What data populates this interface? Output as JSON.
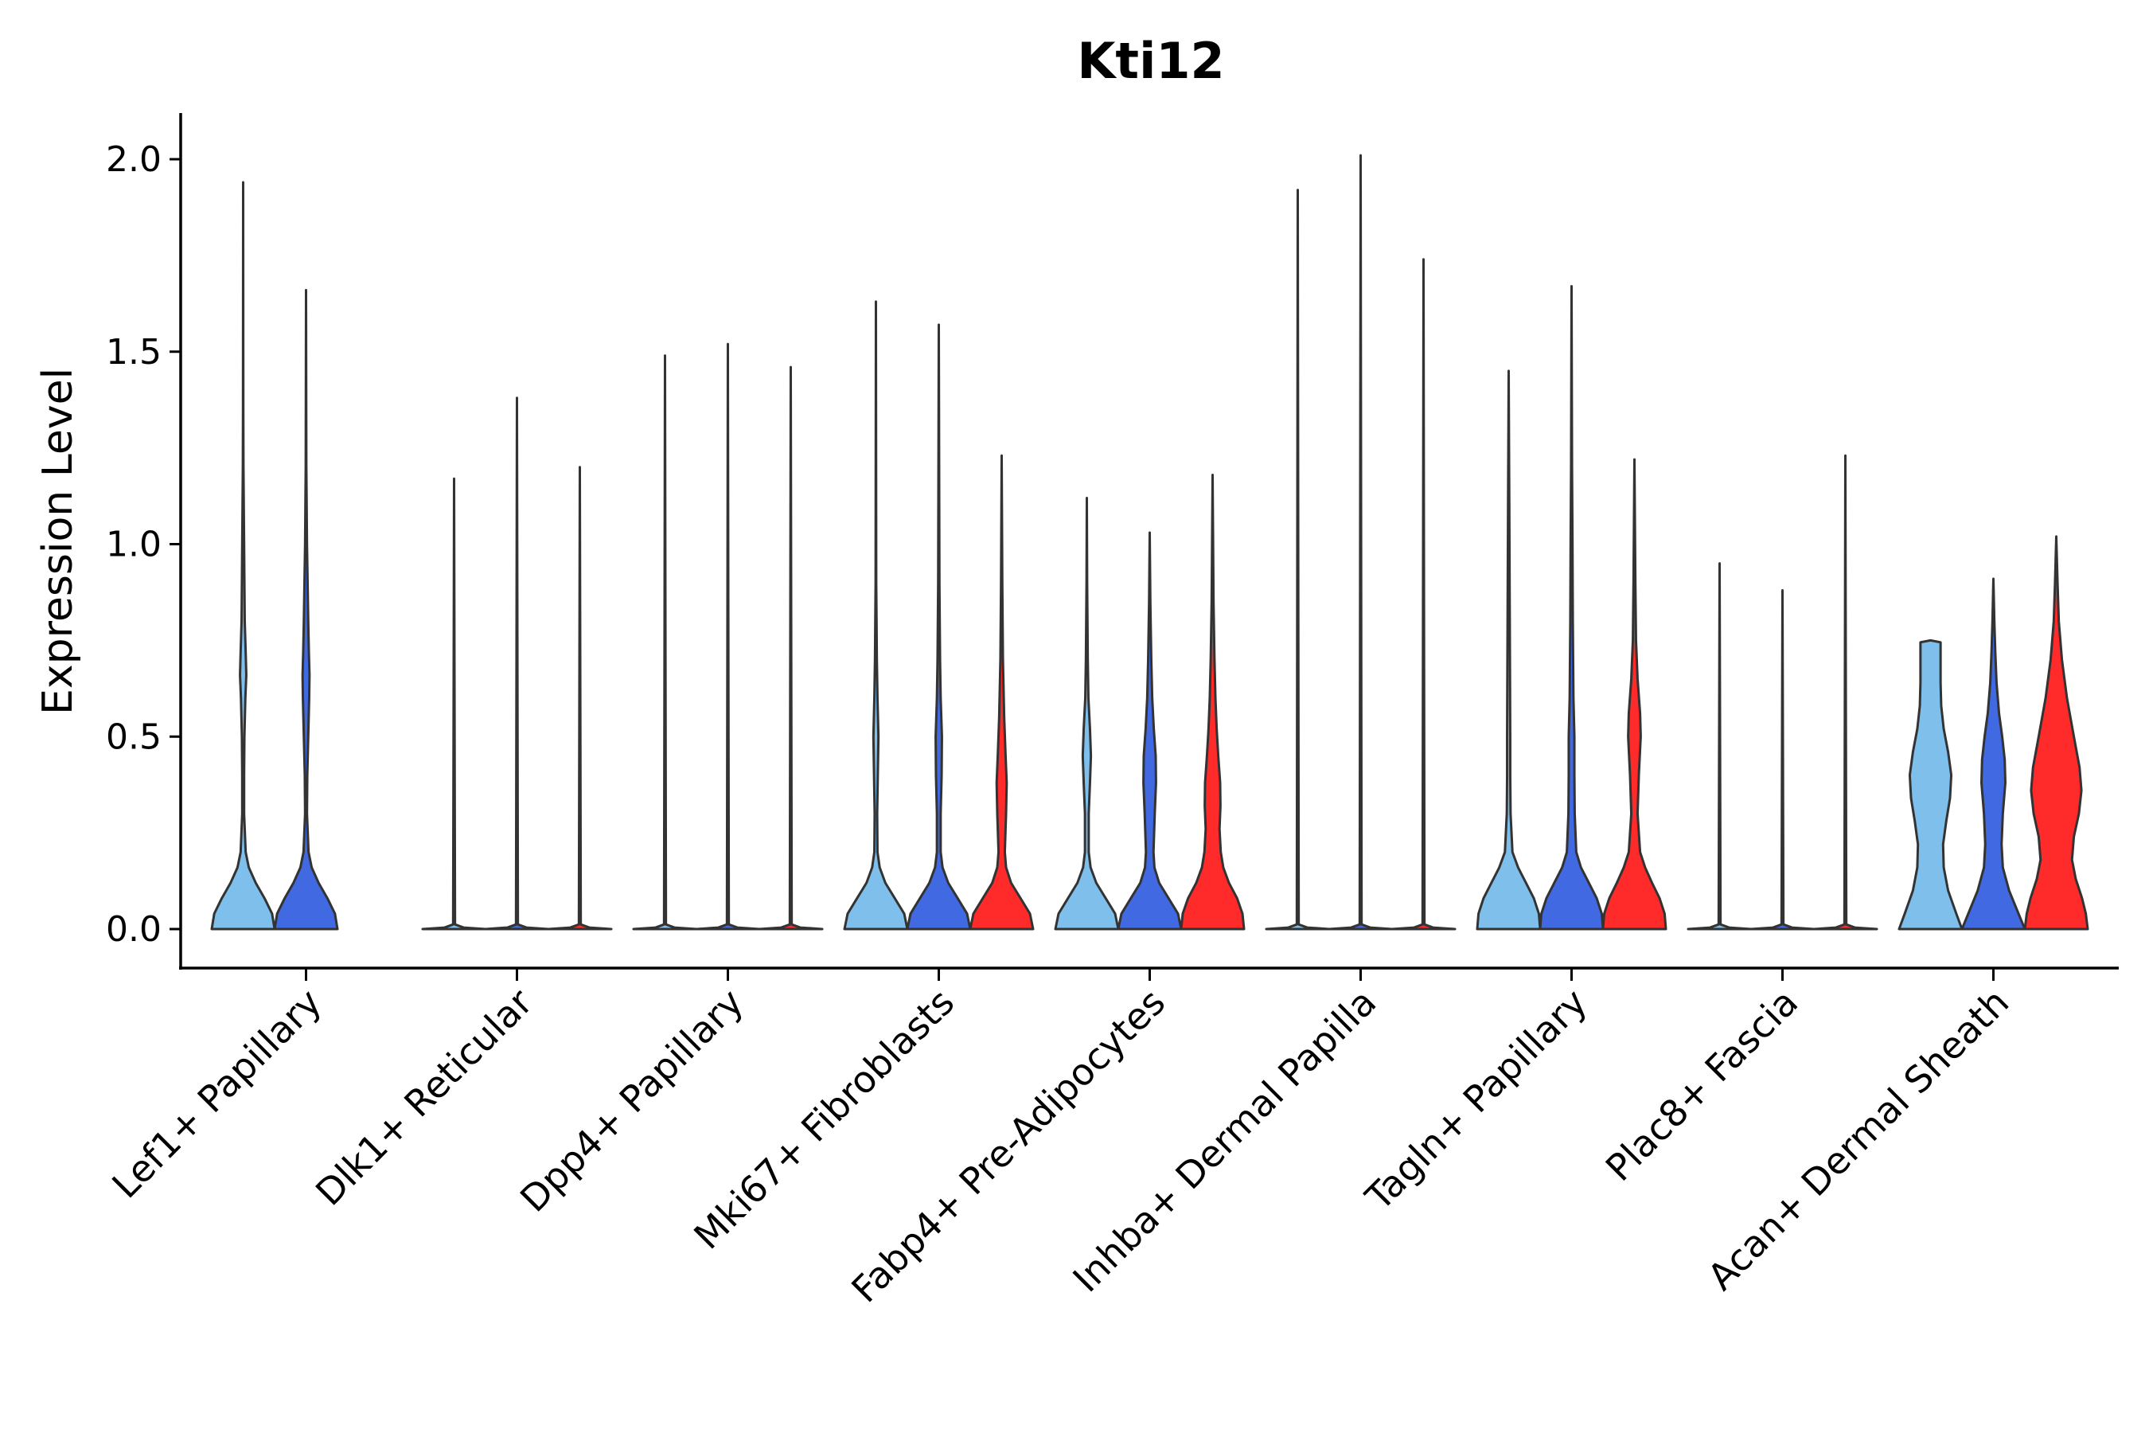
{
  "chart_data": {
    "type": "violin",
    "title": "Kti12",
    "xlabel": "",
    "ylabel": "Expression Level",
    "ylim": [
      -0.1,
      2.12
    ],
    "yticks": [
      0.0,
      0.5,
      1.0,
      1.5,
      2.0
    ],
    "ytick_labels": [
      "0.0",
      "0.5",
      "1.0",
      "1.5",
      "2.0"
    ],
    "grid": false,
    "legend": "none",
    "categories": [
      "Lef1+ Papillary",
      "Dlk1+ Reticular",
      "Dpp4+ Papillary",
      "Mki67+ Fibroblasts",
      "Fabp4+ Pre-Adipocytes",
      "Inhba+ Dermal Papilla",
      "Tagln+ Papillary",
      "Plac8+ Fascia",
      "Acan+ Dermal Sheath"
    ],
    "series_colors": [
      "#7fbfec",
      "#4169e1",
      "#ff2a2a"
    ],
    "groups": [
      {
        "category": "Lef1+ Papillary",
        "violins": [
          {
            "series": 0,
            "max": 1.94,
            "profile": [
              [
                0,
                1.0
              ],
              [
                0.04,
                0.92
              ],
              [
                0.08,
                0.68
              ],
              [
                0.12,
                0.4
              ],
              [
                0.16,
                0.18
              ],
              [
                0.2,
                0.08
              ],
              [
                0.3,
                0.03
              ],
              [
                0.4,
                0.03
              ],
              [
                0.5,
                0.04
              ],
              [
                0.6,
                0.07
              ],
              [
                0.66,
                0.1
              ],
              [
                0.72,
                0.08
              ],
              [
                0.8,
                0.05
              ],
              [
                0.9,
                0.04
              ],
              [
                1.0,
                0.03
              ],
              [
                1.2,
                0.01
              ],
              [
                1.35,
                0.005
              ],
              [
                1.94,
                0
              ]
            ]
          },
          {
            "series": 1,
            "max": 1.66,
            "profile": [
              [
                0,
                1.0
              ],
              [
                0.04,
                0.92
              ],
              [
                0.08,
                0.68
              ],
              [
                0.12,
                0.4
              ],
              [
                0.16,
                0.18
              ],
              [
                0.2,
                0.08
              ],
              [
                0.3,
                0.03
              ],
              [
                0.4,
                0.04
              ],
              [
                0.5,
                0.07
              ],
              [
                0.6,
                0.1
              ],
              [
                0.66,
                0.11
              ],
              [
                0.72,
                0.09
              ],
              [
                0.8,
                0.07
              ],
              [
                0.9,
                0.05
              ],
              [
                1.0,
                0.03
              ],
              [
                1.2,
                0.01
              ],
              [
                1.66,
                0
              ]
            ]
          },
          {
            "series": 2,
            "absent": true
          }
        ]
      },
      {
        "category": "Dlk1+ Reticular",
        "violins": [
          {
            "series": 0,
            "max": 1.17,
            "flat": true
          },
          {
            "series": 1,
            "max": 1.38,
            "flat": true
          },
          {
            "series": 2,
            "max": 1.2,
            "flat": true
          }
        ]
      },
      {
        "category": "Dpp4+ Papillary",
        "violins": [
          {
            "series": 0,
            "max": 1.49,
            "flat": true
          },
          {
            "series": 1,
            "max": 1.52,
            "flat": true
          },
          {
            "series": 2,
            "max": 1.46,
            "flat": true
          }
        ]
      },
      {
        "category": "Mki67+ Fibroblasts",
        "violins": [
          {
            "series": 0,
            "max": 1.63,
            "profile": [
              [
                0,
                1.0
              ],
              [
                0.04,
                0.9
              ],
              [
                0.08,
                0.6
              ],
              [
                0.12,
                0.3
              ],
              [
                0.16,
                0.12
              ],
              [
                0.2,
                0.05
              ],
              [
                0.3,
                0.04
              ],
              [
                0.4,
                0.06
              ],
              [
                0.5,
                0.08
              ],
              [
                0.6,
                0.05
              ],
              [
                0.7,
                0.03
              ],
              [
                0.9,
                0.01
              ],
              [
                1.63,
                0
              ]
            ]
          },
          {
            "series": 1,
            "max": 1.57,
            "profile": [
              [
                0,
                1.0
              ],
              [
                0.04,
                0.9
              ],
              [
                0.08,
                0.6
              ],
              [
                0.12,
                0.3
              ],
              [
                0.16,
                0.12
              ],
              [
                0.2,
                0.06
              ],
              [
                0.3,
                0.06
              ],
              [
                0.4,
                0.09
              ],
              [
                0.5,
                0.1
              ],
              [
                0.6,
                0.06
              ],
              [
                0.7,
                0.04
              ],
              [
                0.9,
                0.02
              ],
              [
                1.57,
                0
              ]
            ]
          },
          {
            "series": 2,
            "max": 1.23,
            "profile": [
              [
                0,
                1.0
              ],
              [
                0.04,
                0.9
              ],
              [
                0.08,
                0.6
              ],
              [
                0.12,
                0.3
              ],
              [
                0.16,
                0.14
              ],
              [
                0.2,
                0.1
              ],
              [
                0.3,
                0.14
              ],
              [
                0.38,
                0.16
              ],
              [
                0.46,
                0.12
              ],
              [
                0.55,
                0.08
              ],
              [
                0.7,
                0.04
              ],
              [
                0.9,
                0.02
              ],
              [
                1.23,
                0
              ]
            ]
          }
        ]
      },
      {
        "category": "Fabp4+ Pre-Adipocytes",
        "violins": [
          {
            "series": 0,
            "max": 1.12,
            "profile": [
              [
                0,
                1.0
              ],
              [
                0.04,
                0.9
              ],
              [
                0.08,
                0.6
              ],
              [
                0.12,
                0.3
              ],
              [
                0.16,
                0.12
              ],
              [
                0.2,
                0.06
              ],
              [
                0.3,
                0.06
              ],
              [
                0.38,
                0.1
              ],
              [
                0.45,
                0.13
              ],
              [
                0.52,
                0.1
              ],
              [
                0.6,
                0.05
              ],
              [
                0.7,
                0.03
              ],
              [
                0.9,
                0.01
              ],
              [
                1.12,
                0
              ]
            ]
          },
          {
            "series": 1,
            "max": 1.03,
            "profile": [
              [
                0,
                1.0
              ],
              [
                0.04,
                0.9
              ],
              [
                0.08,
                0.6
              ],
              [
                0.12,
                0.3
              ],
              [
                0.16,
                0.15
              ],
              [
                0.2,
                0.12
              ],
              [
                0.3,
                0.16
              ],
              [
                0.38,
                0.2
              ],
              [
                0.45,
                0.19
              ],
              [
                0.52,
                0.13
              ],
              [
                0.6,
                0.08
              ],
              [
                0.7,
                0.05
              ],
              [
                0.85,
                0.02
              ],
              [
                1.03,
                0
              ]
            ]
          },
          {
            "series": 2,
            "max": 1.18,
            "profile": [
              [
                0,
                1.0
              ],
              [
                0.04,
                0.95
              ],
              [
                0.08,
                0.78
              ],
              [
                0.12,
                0.52
              ],
              [
                0.16,
                0.34
              ],
              [
                0.2,
                0.26
              ],
              [
                0.26,
                0.22
              ],
              [
                0.32,
                0.25
              ],
              [
                0.38,
                0.24
              ],
              [
                0.45,
                0.18
              ],
              [
                0.52,
                0.13
              ],
              [
                0.6,
                0.09
              ],
              [
                0.7,
                0.06
              ],
              [
                0.85,
                0.03
              ],
              [
                1.18,
                0
              ]
            ]
          }
        ]
      },
      {
        "category": "Inhba+ Dermal Papilla",
        "violins": [
          {
            "series": 0,
            "max": 1.92,
            "flat": true
          },
          {
            "series": 1,
            "max": 2.01,
            "flat": true
          },
          {
            "series": 2,
            "max": 1.74,
            "flat": true
          }
        ]
      },
      {
        "category": "Tagln+ Papillary",
        "violins": [
          {
            "series": 0,
            "max": 1.45,
            "profile": [
              [
                0,
                1.0
              ],
              [
                0.04,
                0.96
              ],
              [
                0.08,
                0.8
              ],
              [
                0.12,
                0.55
              ],
              [
                0.16,
                0.3
              ],
              [
                0.2,
                0.12
              ],
              [
                0.3,
                0.06
              ],
              [
                0.4,
                0.05
              ],
              [
                0.5,
                0.05
              ],
              [
                0.7,
                0.04
              ],
              [
                0.9,
                0.03
              ],
              [
                1.1,
                0.02
              ],
              [
                1.3,
                0.008
              ],
              [
                1.45,
                0
              ]
            ]
          },
          {
            "series": 1,
            "max": 1.67,
            "profile": [
              [
                0,
                1.0
              ],
              [
                0.04,
                0.96
              ],
              [
                0.08,
                0.8
              ],
              [
                0.12,
                0.55
              ],
              [
                0.16,
                0.3
              ],
              [
                0.2,
                0.15
              ],
              [
                0.3,
                0.1
              ],
              [
                0.4,
                0.09
              ],
              [
                0.5,
                0.09
              ],
              [
                0.6,
                0.06
              ],
              [
                0.8,
                0.04
              ],
              [
                1.0,
                0.03
              ],
              [
                1.2,
                0.015
              ],
              [
                1.67,
                0
              ]
            ]
          },
          {
            "series": 2,
            "max": 1.22,
            "profile": [
              [
                0,
                1.0
              ],
              [
                0.04,
                0.96
              ],
              [
                0.08,
                0.8
              ],
              [
                0.12,
                0.56
              ],
              [
                0.16,
                0.34
              ],
              [
                0.2,
                0.18
              ],
              [
                0.3,
                0.1
              ],
              [
                0.4,
                0.14
              ],
              [
                0.5,
                0.2
              ],
              [
                0.56,
                0.18
              ],
              [
                0.65,
                0.1
              ],
              [
                0.75,
                0.05
              ],
              [
                0.9,
                0.03
              ],
              [
                1.22,
                0
              ]
            ]
          }
        ]
      },
      {
        "category": "Plac8+ Fascia",
        "violins": [
          {
            "series": 0,
            "max": 0.95,
            "flat": true
          },
          {
            "series": 1,
            "max": 0.88,
            "flat": true
          },
          {
            "series": 2,
            "max": 1.23,
            "flat": true
          }
        ]
      },
      {
        "category": "Acan+ Dermal Sheath",
        "violins": [
          {
            "series": 0,
            "max": 0.75,
            "profile": [
              [
                0,
                1.0
              ],
              [
                0.04,
                0.82
              ],
              [
                0.1,
                0.56
              ],
              [
                0.16,
                0.42
              ],
              [
                0.22,
                0.4
              ],
              [
                0.28,
                0.5
              ],
              [
                0.34,
                0.62
              ],
              [
                0.4,
                0.66
              ],
              [
                0.46,
                0.56
              ],
              [
                0.52,
                0.42
              ],
              [
                0.58,
                0.34
              ],
              [
                0.64,
                0.32
              ],
              [
                0.7,
                0.32
              ],
              [
                0.745,
                0.32
              ],
              [
                0.75,
                0
              ]
            ]
          },
          {
            "series": 1,
            "max": 0.91,
            "profile": [
              [
                0,
                1.0
              ],
              [
                0.04,
                0.8
              ],
              [
                0.1,
                0.5
              ],
              [
                0.16,
                0.3
              ],
              [
                0.22,
                0.26
              ],
              [
                0.3,
                0.3
              ],
              [
                0.38,
                0.38
              ],
              [
                0.44,
                0.36
              ],
              [
                0.5,
                0.28
              ],
              [
                0.56,
                0.18
              ],
              [
                0.64,
                0.1
              ],
              [
                0.72,
                0.06
              ],
              [
                0.8,
                0.03
              ],
              [
                0.91,
                0
              ]
            ]
          },
          {
            "series": 2,
            "max": 1.02,
            "profile": [
              [
                0,
                1.0
              ],
              [
                0.04,
                0.94
              ],
              [
                0.08,
                0.82
              ],
              [
                0.13,
                0.62
              ],
              [
                0.18,
                0.5
              ],
              [
                0.24,
                0.56
              ],
              [
                0.3,
                0.72
              ],
              [
                0.36,
                0.8
              ],
              [
                0.42,
                0.74
              ],
              [
                0.5,
                0.56
              ],
              [
                0.6,
                0.34
              ],
              [
                0.7,
                0.18
              ],
              [
                0.8,
                0.08
              ],
              [
                0.9,
                0.04
              ],
              [
                1.02,
                0
              ]
            ]
          }
        ]
      }
    ]
  }
}
